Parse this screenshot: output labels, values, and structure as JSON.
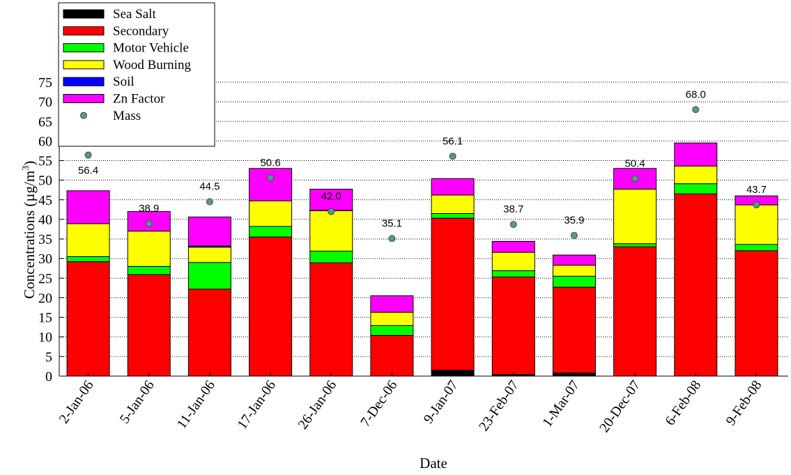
{
  "chart_data": {
    "type": "bar",
    "stacked": true,
    "xlabel": "Date",
    "ylabel": "Concentrations (µg/m³)",
    "ylabel_parts": {
      "main": "Concentrations (µg/m",
      "sup": "3",
      "close": ")"
    },
    "ylim": [
      0,
      75
    ],
    "yticks": [
      0,
      5,
      10,
      15,
      20,
      25,
      30,
      35,
      40,
      45,
      50,
      55,
      60,
      65,
      70,
      75
    ],
    "grid": "horizontal dotted",
    "legend_position": "top-left",
    "categories": [
      "2-Jan-06",
      "5-Jan-06",
      "11-Jan-06",
      "17-Jan-06",
      "26-Jan-06",
      "7-Dec-06",
      "9-Jan-07",
      "23-Feb-07",
      "1-Mar-07",
      "20-Dec-07",
      "6-Feb-08",
      "9-Feb-08"
    ],
    "series": [
      {
        "name": "Sea Salt",
        "color": "#000000",
        "values": [
          0,
          0,
          0,
          0,
          0,
          0,
          1.5,
          0.4,
          0.8,
          0,
          0,
          0
        ]
      },
      {
        "name": "Secondary",
        "color": "#ff0000",
        "values": [
          29.2,
          25.9,
          22.2,
          35.5,
          28.9,
          10.4,
          38.8,
          24.9,
          21.9,
          33.0,
          46.5,
          32.0
        ]
      },
      {
        "name": "Motor Vehicle",
        "color": "#00ff00",
        "values": [
          1.3,
          2.1,
          6.8,
          2.7,
          3.0,
          2.5,
          1.2,
          1.6,
          2.8,
          0.8,
          2.6,
          1.6
        ]
      },
      {
        "name": "Wood Burning",
        "color": "#ffff00",
        "values": [
          8.4,
          9.0,
          3.9,
          6.5,
          10.3,
          3.4,
          4.7,
          4.7,
          2.8,
          13.9,
          4.5,
          10.1
        ]
      },
      {
        "name": "Soil",
        "color": "#0000ff",
        "values": [
          0,
          0,
          0.3,
          0,
          0.1,
          0,
          0,
          0,
          0,
          0,
          0,
          0
        ]
      },
      {
        "name": "Zn Factor",
        "color": "#ff00ff",
        "values": [
          8.4,
          5.0,
          7.4,
          8.3,
          5.4,
          4.2,
          4.2,
          2.8,
          2.6,
          5.3,
          5.9,
          2.3
        ]
      }
    ],
    "mass": {
      "name": "Mass",
      "color": "#5f9593",
      "values": [
        56.4,
        38.9,
        44.5,
        50.6,
        42.0,
        35.1,
        56.1,
        38.7,
        35.9,
        50.4,
        68.0,
        43.7
      ],
      "labels": [
        "56.4",
        "38.9",
        "44.5",
        "50.6",
        "42.0",
        "35.1",
        "56.1",
        "38.7",
        "35.9",
        "50.4",
        "68.0",
        "43.7"
      ],
      "label_placement": [
        "below",
        "above",
        "above",
        "above",
        "above",
        "above",
        "above",
        "above",
        "above",
        "above",
        "above",
        "above"
      ]
    }
  }
}
